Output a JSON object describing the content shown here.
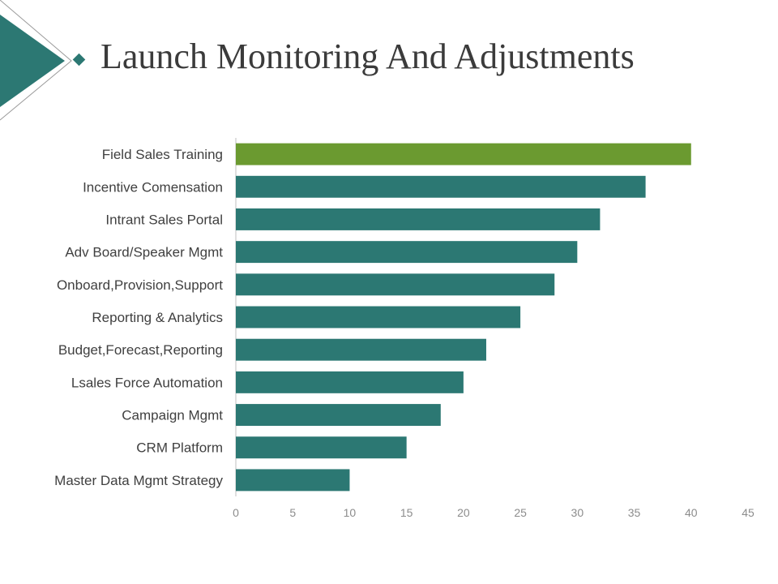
{
  "slide": {
    "title": "Launch Monitoring And Adjustments"
  },
  "colors": {
    "primary_bar": "#2C7873",
    "highlight_bar": "#6B9A30",
    "title": "#3b3b3b",
    "deco": "#2C7873"
  },
  "chart_data": {
    "type": "bar",
    "orientation": "horizontal",
    "title": "",
    "xlabel": "",
    "ylabel": "",
    "categories": [
      "Field Sales Training",
      "Incentive Comensation",
      "Intrant Sales Portal",
      "Adv Board/Speaker Mgmt",
      "Onboard,Provision,Support",
      "Reporting & Analytics",
      "Budget,Forecast,Reporting",
      "Lsales Force Automation",
      "Campaign Mgmt",
      "CRM Platform",
      "Master Data Mgmt Strategy"
    ],
    "values": [
      40,
      36,
      32,
      30,
      28,
      25,
      22,
      20,
      18,
      15,
      10
    ],
    "highlighted_category": "Field Sales Training",
    "xlim": [
      0,
      45
    ],
    "xticks": [
      0,
      5,
      10,
      15,
      20,
      25,
      30,
      35,
      40,
      45
    ],
    "grid": false,
    "legend": "none"
  }
}
